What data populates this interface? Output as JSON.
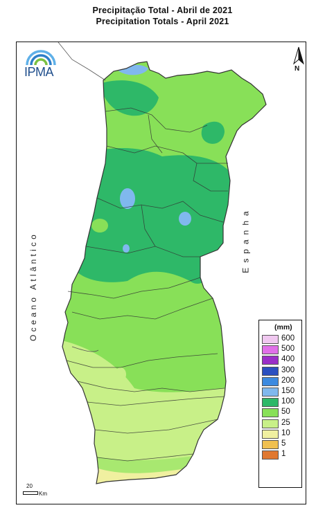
{
  "title": {
    "pt": "Precipitação Total  -  Abril de 2021",
    "en": "Precipitation Totals - April 2021"
  },
  "labels": {
    "ocean": "Oceano Atlântico",
    "spain": "Espanha"
  },
  "logo": {
    "text": "IPMA"
  },
  "north_arrow": {
    "label": "N"
  },
  "scale_bar": {
    "value": "20",
    "unit": "Km"
  },
  "legend": {
    "unit": "(mm)",
    "classes": [
      {
        "label": "600",
        "color": "#f0c8f0"
      },
      {
        "label": "500",
        "color": "#e070e8"
      },
      {
        "label": "400",
        "color": "#9a2ec8"
      },
      {
        "label": "300",
        "color": "#2a4fc0"
      },
      {
        "label": "200",
        "color": "#3c8ae0"
      },
      {
        "label": "150",
        "color": "#80b8ee"
      },
      {
        "label": "100",
        "color": "#2eb868"
      },
      {
        "label": "50",
        "color": "#88e058"
      },
      {
        "label": "25",
        "color": "#c8f088"
      },
      {
        "label": "10",
        "color": "#f0f0a0"
      },
      {
        "label": "5",
        "color": "#f0c050"
      },
      {
        "label": "1",
        "color": "#e07830"
      }
    ]
  },
  "colors": {
    "land_base": "#88e058",
    "wet_zone": "#2eb868",
    "very_wet": "#80b8ee",
    "dry_zone": "#c8f088",
    "driest": "#f0f0a0",
    "spain_land": "#ffffff",
    "border": "#333333"
  }
}
